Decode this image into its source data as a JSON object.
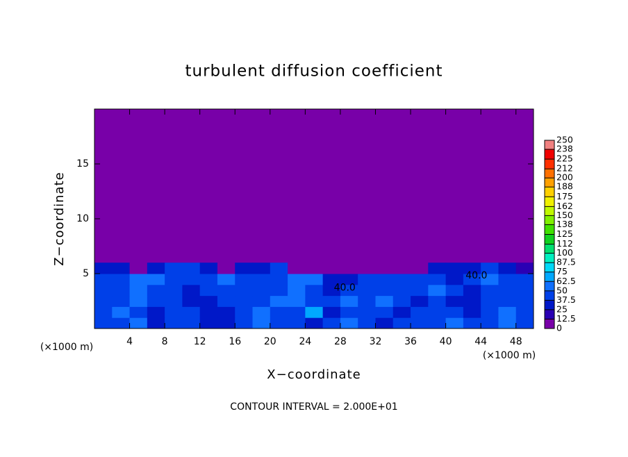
{
  "chart_data": {
    "type": "contour",
    "title": "turbulent diffusion coefficient",
    "x_label": "X−coordinate",
    "y_label": "Z−coordinate",
    "x_unit_left": "(×1000 m)",
    "x_unit_right": "(×1000 m)",
    "footer": "CONTOUR INTERVAL = 2.000E+01",
    "xlim": [
      0,
      50
    ],
    "xticks": [
      4,
      8,
      12,
      16,
      20,
      24,
      28,
      32,
      36,
      40,
      44,
      48
    ],
    "ylim": [
      0,
      20
    ],
    "yticks": [
      5,
      10,
      15
    ],
    "x": [
      1,
      3,
      5,
      7,
      9,
      11,
      13,
      15,
      17,
      19,
      21,
      23,
      25,
      27,
      29,
      31,
      33,
      35,
      37,
      39,
      41,
      43,
      45,
      47,
      49
    ],
    "z": [
      0.5,
      1.5,
      2.5,
      3.5,
      4.5,
      5.5
    ],
    "values": [
      [
        40,
        45,
        50,
        35,
        40,
        45,
        35,
        30,
        40,
        60,
        45,
        40,
        35,
        40,
        55,
        45,
        35,
        40,
        45,
        40,
        50,
        40,
        45,
        50,
        45
      ],
      [
        45,
        50,
        40,
        35,
        45,
        40,
        30,
        35,
        45,
        50,
        40,
        45,
        70,
        35,
        40,
        45,
        40,
        35,
        40,
        45,
        40,
        35,
        40,
        50,
        45
      ],
      [
        40,
        45,
        55,
        40,
        40,
        30,
        35,
        40,
        45,
        40,
        50,
        60,
        40,
        40,
        55,
        40,
        50,
        40,
        35,
        45,
        35,
        30,
        40,
        45,
        40
      ],
      [
        45,
        40,
        50,
        45,
        40,
        35,
        40,
        45,
        40,
        40,
        45,
        50,
        45,
        35,
        40,
        45,
        45,
        40,
        40,
        50,
        40,
        35,
        45,
        40,
        45
      ],
      [
        40,
        45,
        60,
        50,
        45,
        45,
        40,
        50,
        45,
        45,
        40,
        50,
        50,
        30,
        35,
        40,
        40,
        45,
        40,
        45,
        35,
        40,
        50,
        45,
        40
      ],
      [
        35,
        30,
        0,
        35,
        40,
        40,
        35,
        0,
        30,
        35,
        40,
        0,
        0,
        0,
        0,
        0,
        0,
        0,
        0,
        35,
        30,
        35,
        40,
        35,
        20
      ]
    ],
    "contour_labels": [
      {
        "text": "40.0",
        "x": 28.5,
        "z": 3.7
      },
      {
        "text": "40.0",
        "x": 43.5,
        "z": 4.8
      }
    ],
    "colorbar_ticks": [
      0,
      12.5,
      25,
      37.5,
      50,
      62.5,
      75,
      87.5,
      100,
      112,
      125,
      138,
      150,
      162,
      175,
      188,
      200,
      212,
      225,
      238,
      250
    ],
    "colorbar_colors": [
      "#7800a8",
      "#2a00b4",
      "#0018c8",
      "#0040e8",
      "#1070ff",
      "#00a8ff",
      "#00d8f8",
      "#00f0c0",
      "#00e070",
      "#10d020",
      "#40e000",
      "#80f000",
      "#c0f800",
      "#f0f000",
      "#ffd000",
      "#ffa000",
      "#ff7000",
      "#ff3000",
      "#f00000",
      "#f08080"
    ]
  }
}
